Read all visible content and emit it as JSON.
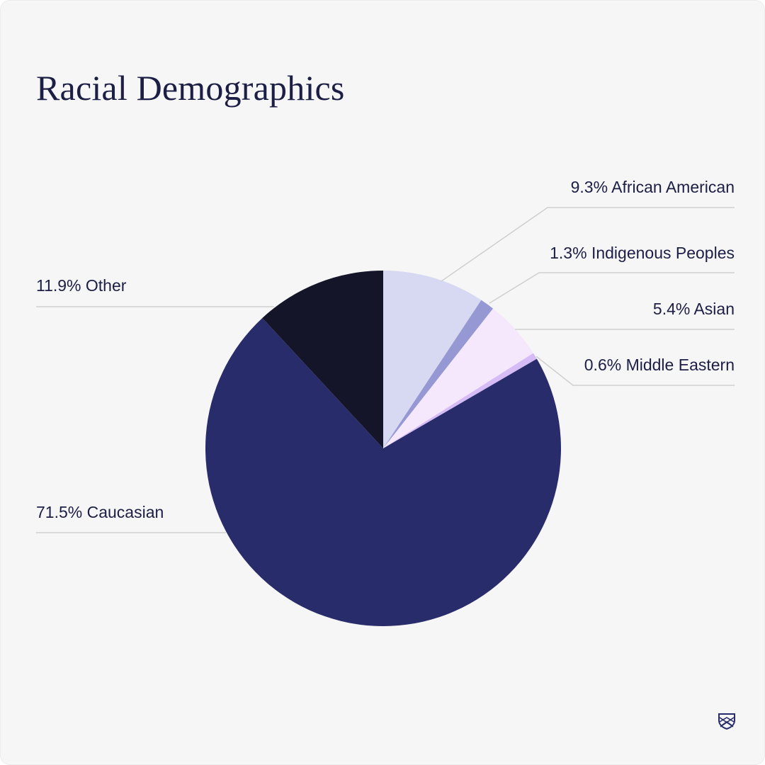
{
  "page": {
    "title": "Racial Demographics"
  },
  "chart_data": {
    "type": "pie",
    "title": "Racial Demographics",
    "start_angle_deg": 0,
    "direction": "clockwise",
    "slices": [
      {
        "label": "9.3% African American",
        "value": 9.3,
        "color": "#d7d8f1"
      },
      {
        "label": "1.3% Indigenous Peoples",
        "value": 1.3,
        "color": "#9598d3"
      },
      {
        "label": "5.4% Asian",
        "value": 5.4,
        "color": "#f5e8fc"
      },
      {
        "label": "0.6% Middle Eastern",
        "value": 0.6,
        "color": "#d6bcf7"
      },
      {
        "label": "71.5% Caucasian",
        "value": 71.5,
        "color": "#282c6b"
      },
      {
        "label": "11.9% Other",
        "value": 11.9,
        "color": "#141529"
      }
    ]
  },
  "brand": {
    "logo_icon": "shield-crest-icon",
    "logo_color": "#282c6b"
  }
}
